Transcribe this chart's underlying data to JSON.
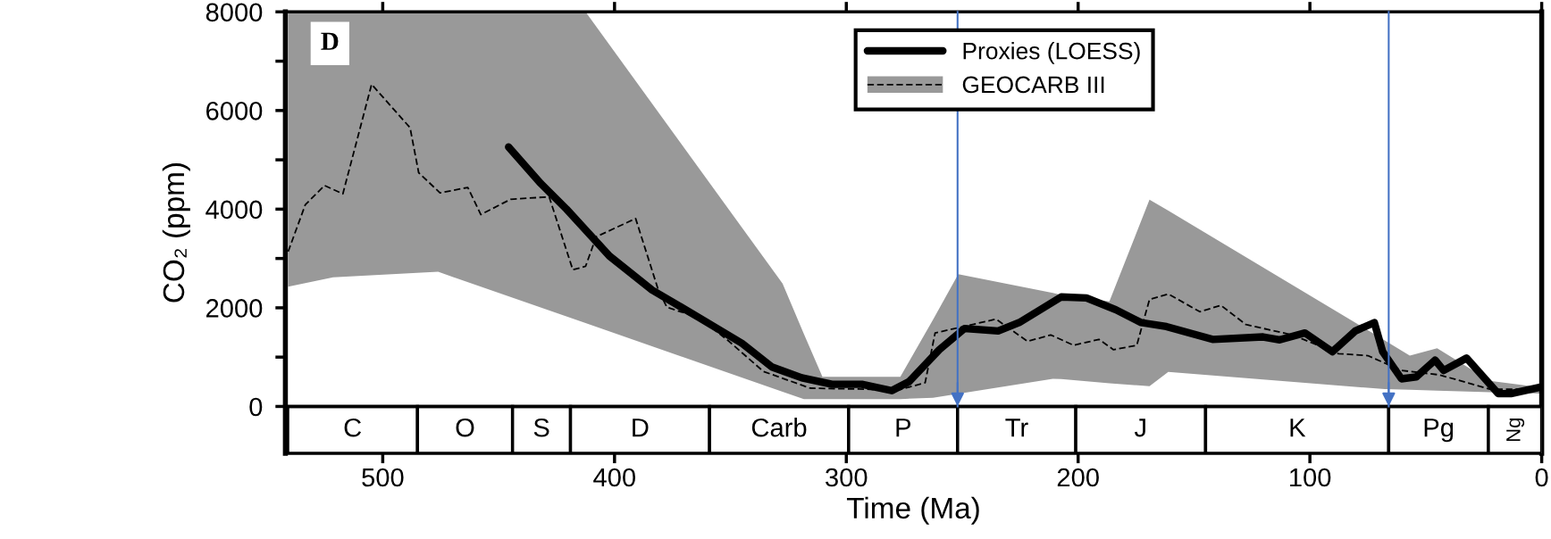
{
  "chart_data": {
    "type": "line",
    "xlabel": "Time (Ma)",
    "ylabel": "CO₂ (ppm)",
    "xlim": [
      542,
      0
    ],
    "xticks": [
      500,
      400,
      300,
      200,
      100,
      0
    ],
    "ylim": [
      -950,
      8000
    ],
    "yticks": [
      0,
      {
        "value": 1000,
        "label": null
      },
      2000,
      {
        "value": 3000,
        "label": null
      },
      4000,
      {
        "value": 5000,
        "label": null
      },
      6000,
      {
        "value": 7000,
        "label": null
      },
      8000
    ],
    "grid": false,
    "legend": "top right",
    "annotations": [
      "D"
    ],
    "series": [
      {
        "name": null,
        "color": "#999999",
        "x": [
          540.8,
          521.4,
          476.1,
          412.5,
          327.5,
          318.3,
          310.3,
          276.7,
          262.6,
          251.7,
          210.9,
          207.3,
          186.5,
          169.2,
          161.1,
          67.7,
          56.9,
          45.1,
          22.4,
          0.6
        ],
        "values": [
          null,
          null,
          null,
          null,
          null,
          null,
          null,
          null,
          null,
          null,
          null,
          null,
          null,
          null,
          null,
          null,
          null,
          null,
          null,
          null
        ],
        "upper": [
          8000,
          8000,
          8000,
          8000,
          2490,
          1470,
          600,
          600,
          1760,
          2680,
          2300,
          2260,
          2130,
          4190,
          3970,
          1340,
          1030,
          1180,
          520,
          390
        ],
        "lower": [
          2430,
          2620,
          2730,
          1690,
          300,
          150,
          150,
          150,
          175,
          255,
          560,
          555,
          470,
          410,
          700,
          350,
          340,
          320,
          290,
          260
        ]
      },
      {
        "name": "GEOCARB III",
        "color": "#000000",
        "line_style": "dashed",
        "x": [
          540.8,
          533.4,
          525.1,
          517.2,
          504.8,
          488.2,
          484.5,
          475.3,
          463.3,
          457.7,
          444.8,
          428.2,
          418.0,
          412.5,
          407.9,
          390.9,
          381.1,
          377.4,
          363.5,
          350.6,
          335.8,
          315.5,
          291.5,
          278.6,
          266.0,
          261.7,
          235.4,
          221.8,
          211.8,
          201.9,
          191.0,
          184.7,
          174.7,
          169.2,
          161.1,
          147.5,
          138.4,
          127.6,
          107.6,
          87.7,
          75.0,
          60.5,
          44.1,
          35.1,
          22.4,
          0.6
        ],
        "values": [
          3140,
          4090,
          4480,
          4310,
          6530,
          5650,
          4740,
          4330,
          4440,
          3890,
          4200,
          4250,
          2770,
          2840,
          3440,
          3810,
          2360,
          2010,
          1800,
          1320,
          710,
          370,
          350,
          320,
          480,
          1490,
          1770,
          1320,
          1450,
          1240,
          1360,
          1150,
          1240,
          2170,
          2280,
          1920,
          2050,
          1660,
          1450,
          1070,
          1030,
          730,
          640,
          520,
          350,
          350
        ]
      },
      {
        "name": "Proxies (LOESS)",
        "color": "#000000",
        "line_style": "solid",
        "x": [
          445.7,
          431.8,
          420.7,
          402.2,
          383.8,
          363.5,
          345.0,
          332.1,
          319.2,
          306.2,
          293.3,
          280.4,
          273.0,
          259.9,
          249.0,
          234.5,
          225.4,
          207.3,
          196.4,
          183.7,
          172.8,
          161.9,
          142.0,
          120.2,
          113.0,
          102.1,
          90.3,
          80.4,
          72.2,
          68.6,
          60.5,
          54.1,
          46.0,
          42.3,
          32.4,
          18.8,
          13.3,
          0.6
        ],
        "values": [
          5260,
          4520,
          4000,
          3050,
          2360,
          1800,
          1280,
          800,
          580,
          450,
          450,
          320,
          500,
          1150,
          1580,
          1530,
          1700,
          2220,
          2200,
          1960,
          1700,
          1620,
          1360,
          1410,
          1350,
          1490,
          1110,
          1530,
          1700,
          1110,
          560,
          600,
          940,
          730,
          980,
          260,
          260,
          390
        ]
      }
    ],
    "bands": [
      {
        "axis": "x",
        "from": 541,
        "to": 485,
        "label": "C",
        "color": "#ffffff"
      },
      {
        "axis": "x",
        "from": 485,
        "to": 444,
        "label": "O",
        "color": "#ffffff"
      },
      {
        "axis": "x",
        "from": 444,
        "to": 419,
        "label": "S",
        "color": "#ffffff"
      },
      {
        "axis": "x",
        "from": 419,
        "to": 359,
        "label": "D",
        "color": "#ffffff"
      },
      {
        "axis": "x",
        "from": 359,
        "to": 299,
        "label": "Carb",
        "color": "#ffffff"
      },
      {
        "axis": "x",
        "from": 299,
        "to": 252,
        "label": "P",
        "color": "#ffffff"
      },
      {
        "axis": "x",
        "from": 252,
        "to": 201,
        "label": "Tr",
        "color": "#ffffff"
      },
      {
        "axis": "x",
        "from": 201,
        "to": 145,
        "label": "J",
        "color": "#ffffff"
      },
      {
        "axis": "x",
        "from": 145,
        "to": 66,
        "label": "K",
        "color": "#ffffff"
      },
      {
        "axis": "x",
        "from": 66,
        "to": 23,
        "label": "Pg",
        "color": "#ffffff"
      },
      {
        "axis": "x",
        "from": 23,
        "to": 0,
        "label": "Ng",
        "color": "#ffffff"
      }
    ],
    "ref_lines": [
      {
        "axis": "y",
        "value": 0,
        "label": null,
        "color": "#000000"
      },
      {
        "axis": "x",
        "value": 252,
        "label": null,
        "color": "#4472c4"
      },
      {
        "axis": "x",
        "value": 66,
        "label": null,
        "color": "#4472c4"
      }
    ]
  }
}
